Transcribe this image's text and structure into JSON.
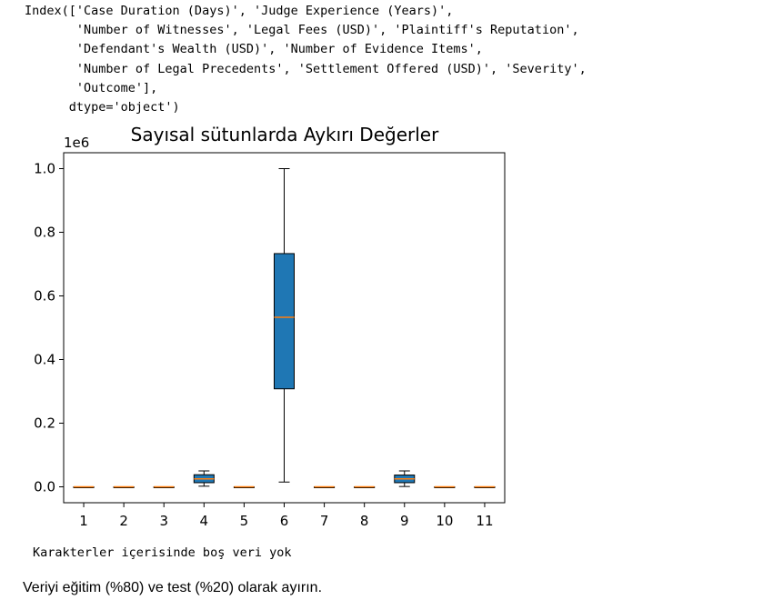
{
  "output_lines": [
    "Index(['Case Duration (Days)', 'Judge Experience (Years)',",
    "       'Number of Witnesses', 'Legal Fees (USD)', 'Plaintiff's Reputation',",
    "       'Defendant's Wealth (USD)', 'Number of Evidence Items',",
    "       'Number of Legal Precedents', 'Settlement Offered (USD)', 'Severity',",
    "       'Outcome'],",
    "      dtype='object')"
  ],
  "chart_data": {
    "type": "box",
    "title": "Sayısal sütunlarda Aykırı Değerler",
    "offset_label": "1e6",
    "categories": [
      "1",
      "2",
      "3",
      "4",
      "5",
      "6",
      "7",
      "8",
      "9",
      "10",
      "11"
    ],
    "ylim": [
      -0.05,
      1.05
    ],
    "yticks": [
      {
        "value": 0.0,
        "label": "0.0"
      },
      {
        "value": 0.2,
        "label": "0.2"
      },
      {
        "value": 0.4,
        "label": "0.4"
      },
      {
        "value": 0.6,
        "label": "0.6"
      },
      {
        "value": 0.8,
        "label": "0.8"
      },
      {
        "value": 1.0,
        "label": "1.0"
      }
    ],
    "boxes": [
      {
        "category": "1",
        "min": 0,
        "q1": 0,
        "median": 0,
        "q3": 0,
        "max": 0
      },
      {
        "category": "2",
        "min": 0,
        "q1": 0,
        "median": 0,
        "q3": 0,
        "max": 0
      },
      {
        "category": "3",
        "min": 0,
        "q1": 0,
        "median": 0,
        "q3": 0,
        "max": 0
      },
      {
        "category": "4",
        "min": 0.002,
        "q1": 0.013,
        "median": 0.025,
        "q3": 0.038,
        "max": 0.05
      },
      {
        "category": "5",
        "min": 0,
        "q1": 0,
        "median": 0,
        "q3": 0,
        "max": 0
      },
      {
        "category": "6",
        "min": 0.015,
        "q1": 0.308,
        "median": 0.533,
        "q3": 0.733,
        "max": 1.0
      },
      {
        "category": "7",
        "min": 0,
        "q1": 0,
        "median": 0,
        "q3": 0,
        "max": 0
      },
      {
        "category": "8",
        "min": 0,
        "q1": 0,
        "median": 0,
        "q3": 0,
        "max": 0
      },
      {
        "category": "9",
        "min": 0.001,
        "q1": 0.013,
        "median": 0.025,
        "q3": 0.037,
        "max": 0.05
      },
      {
        "category": "10",
        "min": 0,
        "q1": 0,
        "median": 0,
        "q3": 0,
        "max": 0
      },
      {
        "category": "11",
        "min": 0,
        "q1": 0,
        "median": 0,
        "q3": 0,
        "max": 0
      }
    ],
    "box_color": "#1f77b4",
    "median_color": "#ff7f0e",
    "grid": false
  },
  "stream_text": "Karakterler içerisinde boş veri yok",
  "markdown_text": "Veriyi eğitim (%80) ve test (%20) olarak ayırın."
}
